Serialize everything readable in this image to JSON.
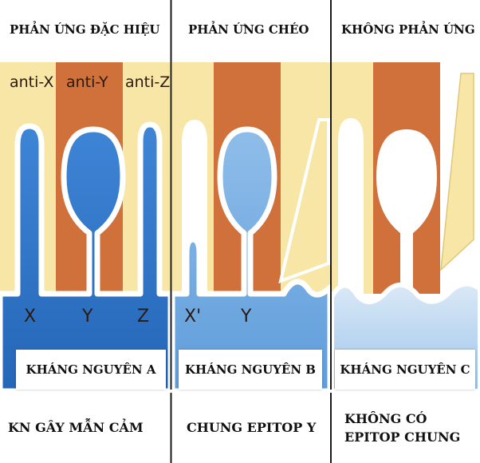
{
  "columns": [
    {
      "header": "PHẢN ỨNG ĐẶC HIỆU",
      "antigen": "KHÁNG NGUYÊN A",
      "caption": [
        "KN GÂY MẪN CẢM"
      ],
      "antibody_labels": [
        "anti-X",
        "anti-Y",
        "anti-Z"
      ],
      "epitope_labels": [
        "X",
        "Y",
        "Z"
      ]
    },
    {
      "header": "PHẢN ỨNG CHÉO",
      "antigen": "KHÁNG NGUYÊN B",
      "caption": [
        "CHUNG EPITOP Y"
      ],
      "epitope_labels": [
        "X'",
        "Y"
      ]
    },
    {
      "header": "KHÔNG PHẢN ỨNG",
      "antigen": "KHÁNG NGUYÊN C",
      "caption": [
        "KHÔNG CÓ",
        "EPITOP CHUNG"
      ]
    }
  ],
  "colors": {
    "antibody_pale": "#f7e6a6",
    "antibody_brown": "#d0703a",
    "antigen_blue": "#2f74c8",
    "antigen_light": "#b8d6f2",
    "divider": "#1a1a1a"
  }
}
